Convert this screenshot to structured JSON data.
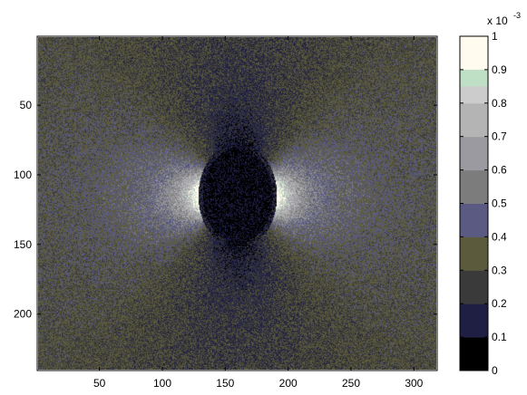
{
  "chart_data": {
    "type": "heatmap",
    "title": "",
    "xlabel": "",
    "ylabel": "",
    "xlim": [
      1,
      318
    ],
    "ylim": [
      1,
      240
    ],
    "y_reversed": true,
    "x_ticks": [
      50,
      100,
      150,
      200,
      250,
      300
    ],
    "y_ticks": [
      50,
      100,
      150,
      200
    ],
    "x_tick_labels": [
      "50",
      "100",
      "150",
      "200",
      "250",
      "300"
    ],
    "y_tick_labels": [
      "50",
      "100",
      "150",
      "200"
    ],
    "field": {
      "background_value": 0.3,
      "disk_center": [
        160,
        115
      ],
      "disk_radius_x": 28,
      "disk_radius_y": 34,
      "disk_value": 0.02,
      "bright_lobes": "left and right of disk (horizontal axis), peak near 1.0",
      "dark_lobes": "above and below disk (vertical axis), minimum near 0.1"
    },
    "colorbar": {
      "location": "right",
      "clim": [
        0,
        1
      ],
      "exponent_label": "x 10",
      "exponent": "-3",
      "tick_values": [
        0,
        0.1,
        0.2,
        0.3,
        0.4,
        0.5,
        0.6,
        0.7,
        0.8,
        0.9,
        1
      ],
      "tick_labels": [
        "0",
        "0.1",
        "0.2",
        "0.3",
        "0.4",
        "0.5",
        "0.6",
        "0.7",
        "0.8",
        "0.9",
        "1"
      ],
      "colors": [
        "#000000",
        "#1f1f44",
        "#3a3a3a",
        "#5c5a3c",
        "#5a5a82",
        "#7c7c7c",
        "#9a9aa0",
        "#b4b4b4",
        "#cccccc",
        "#bfe0c4",
        "#fffbee"
      ]
    }
  }
}
